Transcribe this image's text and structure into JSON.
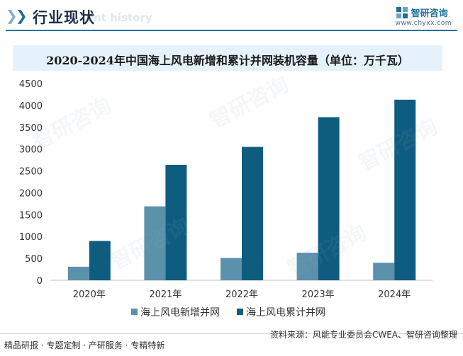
{
  "header": {
    "title": "行业现状",
    "ghost_text": "ent history"
  },
  "logo": {
    "name": "智研咨询",
    "url": "www.chyxx.com"
  },
  "watermark": "智研咨询",
  "colors": {
    "accent": "#1d6f9b",
    "series_new": "#5b91ab",
    "series_cum": "#0e5d81",
    "title_bg": "#e6f2fb"
  },
  "chart_data": {
    "type": "bar",
    "title": "2020-2024年中国海上风电新增和累计并网装机容量（单位：万千瓦）",
    "categories": [
      "2020年",
      "2021年",
      "2022年",
      "2023年",
      "2024年"
    ],
    "series": [
      {
        "name": "海上风电新增并网",
        "values": [
          310,
          1690,
          510,
          630,
          400
        ]
      },
      {
        "name": "海上风电累计并网",
        "values": [
          900,
          2640,
          3050,
          3730,
          4130
        ]
      }
    ],
    "ylim": [
      0,
      4500
    ],
    "yticks": [
      0,
      500,
      1000,
      1500,
      2000,
      2500,
      3000,
      3500,
      4000,
      4500
    ],
    "xlabel": "",
    "ylabel": "",
    "legend_position": "bottom"
  },
  "footer": {
    "left": "精品研报 · 专题定制 · 产研服务 · 专精特新",
    "source": "资料来源：风能专业委员会CWEA、智研咨询整理"
  }
}
